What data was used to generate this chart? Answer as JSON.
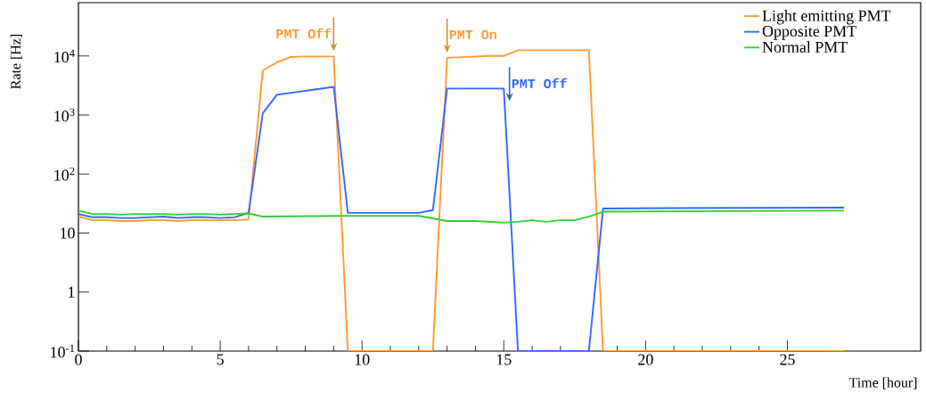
{
  "chart_data": {
    "type": "line",
    "xlabel": "Time [hour]",
    "ylabel": "Rate [Hz]",
    "log": "y",
    "xlim": [
      0,
      29.7
    ],
    "ylim": [
      0.1,
      80000
    ],
    "xticks": [
      0,
      5,
      10,
      15,
      20,
      25
    ],
    "yticks": [
      {
        "value": 0.1,
        "label": "10$^{-1}$"
      },
      1,
      10,
      {
        "value": 100,
        "label": "10$^{2}$"
      },
      {
        "value": 1000,
        "label": "10$^{3}$"
      },
      {
        "value": 10000,
        "label": "10$^{4}$"
      }
    ],
    "grid": false,
    "legend": "top right",
    "marker": "none",
    "line_style": "solid",
    "series": [
      {
        "name": "Light emitting PMT",
        "color": "#ff9933",
        "x": [
          0,
          0.5,
          1,
          1.5,
          2,
          2.5,
          3,
          3.5,
          4,
          4.5,
          5,
          5.5,
          6,
          6.5,
          7,
          7.5,
          8,
          9,
          9.5,
          12.5,
          13,
          14.5,
          15,
          15.5,
          18,
          18.5,
          27
        ],
        "values": [
          19,
          16.5,
          16.5,
          16,
          16,
          16.5,
          16.5,
          16,
          16.5,
          16.5,
          16.5,
          16.5,
          17,
          5700,
          7800,
          9600,
          9800,
          9800,
          0.1,
          0.1,
          9300,
          10000,
          10000,
          12500,
          12500,
          0.1,
          0.1
        ]
      },
      {
        "name": "Opposite PMT",
        "color": "#3366ff",
        "x": [
          0,
          0.5,
          1,
          1.5,
          2,
          2.5,
          3,
          3.5,
          4,
          4.5,
          5,
          5.5,
          6,
          6.5,
          7,
          9,
          9.5,
          12,
          12.5,
          13,
          15,
          15.5,
          18,
          18.5,
          21,
          27
        ],
        "values": [
          21,
          18.5,
          18.5,
          18,
          18,
          18.5,
          19,
          18,
          18.5,
          18.5,
          18,
          18.5,
          22,
          1070,
          2200,
          3000,
          22,
          22,
          24.5,
          2800,
          2800,
          0.1,
          0.1,
          26,
          26.5,
          27
        ]
      },
      {
        "name": "Normal PMT",
        "color": "#33cc33",
        "x": [
          0,
          0.5,
          1,
          1.5,
          2,
          2.5,
          3,
          3.5,
          4,
          4.5,
          5,
          5.5,
          6,
          6.5,
          9.5,
          12,
          13,
          14,
          15,
          15.5,
          16,
          16.5,
          17,
          17.5,
          18,
          18.5,
          27
        ],
        "values": [
          24,
          21,
          21,
          20.5,
          21,
          21,
          21,
          20.5,
          21,
          21,
          20.5,
          21,
          21.5,
          19,
          19.5,
          19.5,
          16,
          16,
          15,
          15.5,
          16.5,
          15.5,
          16.5,
          16.5,
          19,
          23,
          24
        ]
      }
    ],
    "annotations": [
      {
        "text": "PMT Off",
        "x": 9,
        "y": 9800
      },
      {
        "text": "PMT On",
        "x": 13,
        "y": 9300
      },
      {
        "text": "PMT Off",
        "x": 15.2,
        "y": 1400
      }
    ]
  }
}
